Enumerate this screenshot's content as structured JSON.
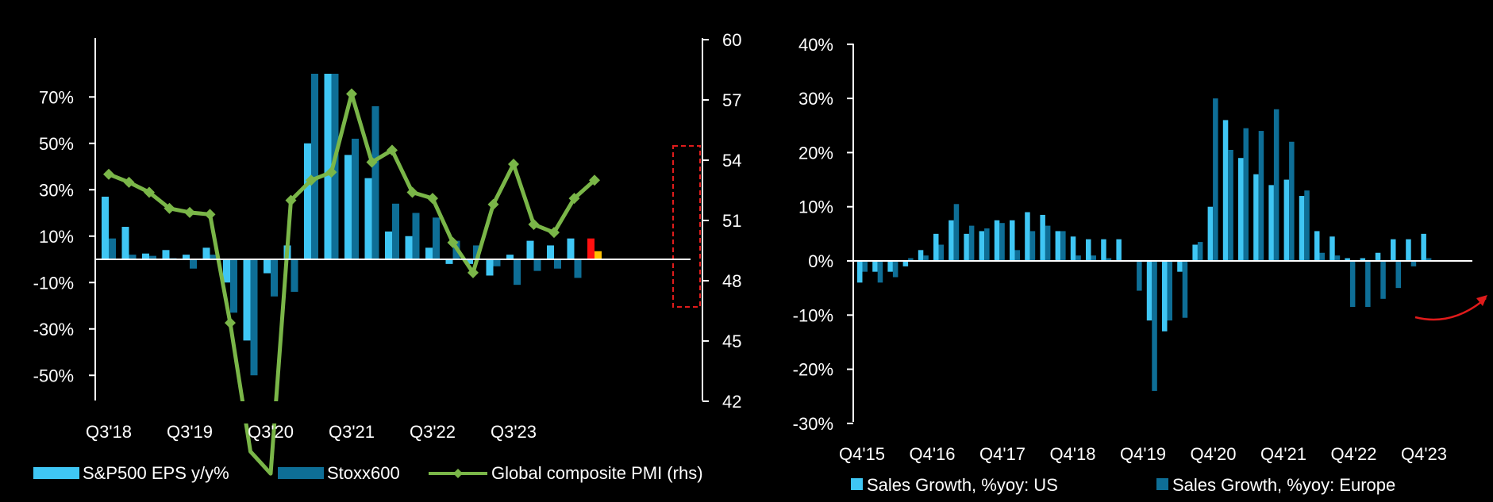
{
  "colors": {
    "background": "#000000",
    "us": "#3fc6f4",
    "europe": "#0e6e96",
    "pmi": "#7ab648",
    "highlight_box": "#e01b1b",
    "highlight_red": "#ff1010",
    "highlight_yellow": "#ffc000",
    "text": "#ffffff"
  },
  "chart_data": [
    {
      "type": "bar",
      "secondary_type": "line",
      "x_tick_labels": [
        "Q3'18",
        "Q3'19",
        "Q3'20",
        "Q3'21",
        "Q3'22",
        "Q3'23"
      ],
      "y_tick_labels": [
        "70%",
        "50%",
        "30%",
        "10%",
        "-10%",
        "-30%",
        "-50%"
      ],
      "y2_tick_labels": [
        "60",
        "57",
        "54",
        "51",
        "48",
        "45",
        "42"
      ],
      "ylim": [
        -50,
        80
      ],
      "y2lim": [
        42,
        60
      ],
      "legend_position": "bottom",
      "legend": [
        "S&P500 EPS y/y%",
        "Stoxx600",
        "Global composite PMI (rhs)"
      ],
      "series": [
        {
          "name": "S&P500 EPS y/y%",
          "axis": "left",
          "color_key": "us",
          "values": [
            27,
            14,
            2.5,
            4,
            2,
            5,
            -10,
            -35,
            -6,
            6,
            50,
            80,
            45,
            35,
            12,
            10,
            5,
            -2,
            -2,
            -7,
            2,
            8,
            6,
            9
          ]
        },
        {
          "name": "Stoxx600",
          "axis": "left",
          "color_key": "europe",
          "values": [
            9,
            2,
            1.5,
            0.5,
            -4,
            2,
            -23,
            -50,
            -16,
            -14,
            80,
            80,
            52,
            66,
            24,
            20,
            18,
            8,
            6,
            -3,
            -11,
            -5,
            -4,
            -8
          ]
        },
        {
          "name": "Global composite PMI (rhs)",
          "axis": "right",
          "type": "line",
          "values": [
            53.3,
            52.9,
            52.4,
            51.6,
            51.4,
            51.3,
            45.9,
            39.5,
            38.4,
            52,
            53,
            53.4,
            57.3,
            53.9,
            54.5,
            52.4,
            52.1,
            49.9,
            48.4,
            51.8,
            53.8,
            50.8,
            50.4,
            52.1,
            53.0
          ]
        }
      ],
      "highlight": {
        "values": [
          9,
          3.5
        ],
        "color_keys": [
          "highlight_red",
          "highlight_yellow"
        ]
      }
    },
    {
      "type": "bar",
      "x_tick_labels": [
        "Q4'15",
        "Q4'16",
        "Q4'17",
        "Q4'18",
        "Q4'19",
        "Q4'20",
        "Q4'21",
        "Q4'22",
        "Q4'23"
      ],
      "y_tick_labels": [
        "40%",
        "30%",
        "20%",
        "10%",
        "0%",
        "-10%",
        "-20%",
        "-30%"
      ],
      "ylim": [
        -30,
        40
      ],
      "legend_position": "bottom",
      "legend": [
        "Sales Growth, %yoy: US",
        "Sales Growth, %yoy: Europe"
      ],
      "series": [
        {
          "name": "Sales Growth, %yoy: US",
          "color_key": "us",
          "values": [
            -4,
            -2,
            -2,
            -1,
            2,
            5,
            7.5,
            5,
            5.5,
            7.5,
            7.5,
            9,
            8.5,
            5.5,
            4.5,
            4,
            4,
            4,
            0,
            -11,
            -13,
            -2,
            3,
            10,
            26,
            19,
            16,
            14,
            15,
            12,
            5.5,
            4.5,
            0.5,
            0.5,
            1.5,
            4,
            4,
            5
          ]
        },
        {
          "name": "Sales Growth, %yoy: Europe",
          "color_key": "europe",
          "values": [
            -2,
            -4,
            -3,
            0.5,
            1,
            3,
            10.5,
            6.5,
            6,
            7,
            2,
            5.5,
            6.5,
            5.5,
            1,
            1,
            0.5,
            0,
            -5.5,
            -24,
            -11,
            -10.5,
            3.5,
            30,
            20.5,
            24.5,
            24,
            28,
            22,
            13,
            1.5,
            1,
            -8.5,
            -8.5,
            -7,
            -5,
            -1,
            0.5
          ]
        }
      ]
    }
  ]
}
